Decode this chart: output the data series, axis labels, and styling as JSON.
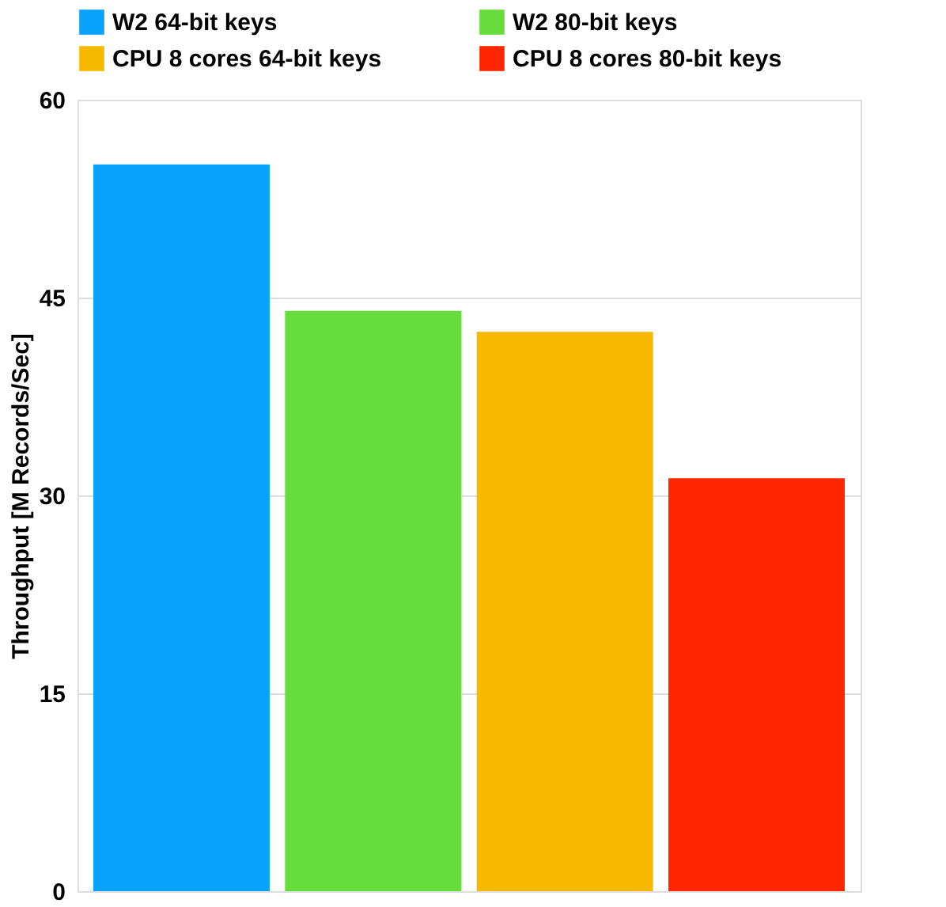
{
  "chart_data": {
    "type": "bar",
    "ylabel": "Throughput [M Records/Sec]",
    "categories": [
      null
    ],
    "series": [
      {
        "name": "W2 64-bit keys",
        "color": "#0aa2ff",
        "values": [
          55.1
        ]
      },
      {
        "name": "W2 80-bit keys",
        "color": "#66dd3d",
        "values": [
          44.0
        ]
      },
      {
        "name": "CPU 8 cores 64-bit keys",
        "color": "#f7b900",
        "values": [
          42.4
        ]
      },
      {
        "name": "CPU 8 cores 80-bit keys",
        "color": "#ff2600",
        "values": [
          31.3
        ]
      }
    ],
    "ylim": [
      0,
      60
    ],
    "yticks": [
      0,
      15,
      30,
      45,
      60
    ],
    "grid": "y",
    "legend": "top",
    "tick_labels": "y"
  }
}
